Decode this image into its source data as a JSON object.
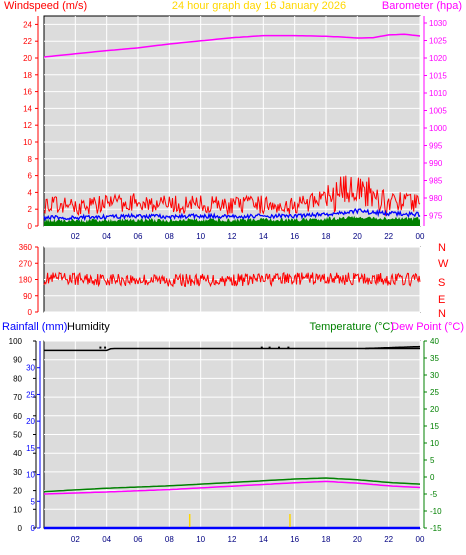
{
  "header": {
    "windspeed_label": "Windspeed (m/s)",
    "title": "24 hour graph day   16 January 2026",
    "barometer_label": "Barometer (hpa)"
  },
  "colors": {
    "wind_gust": "#ff0000",
    "wind_avg": "#0000ff",
    "wind_low": "#008000",
    "barometer": "#ff00ff",
    "title": "#ffd700",
    "temperature": "#008000",
    "dew_point": "#ff00ff",
    "humidity": "#000000",
    "rainfall": "#0000ff",
    "plot_bg": "#dcdcdc",
    "grid": "#ffffff"
  },
  "chart_data": [
    {
      "type": "line",
      "x_ticks": [
        "02",
        "04",
        "06",
        "08",
        "10",
        "12",
        "14",
        "16",
        "18",
        "20",
        "22",
        "00"
      ],
      "y_left": {
        "label": "Windspeed (m/s)",
        "range": [
          0,
          25
        ],
        "ticks": [
          "0",
          "2",
          "4",
          "6",
          "8",
          "10",
          "12",
          "14",
          "16",
          "18",
          "20",
          "22",
          "24"
        ]
      },
      "y_right": {
        "label": "Barometer (hpa)",
        "range": [
          972,
          1032
        ],
        "ticks": [
          "975",
          "980",
          "985",
          "990",
          "995",
          "1000",
          "1005",
          "1010",
          "1015",
          "1020",
          "1025",
          "1030"
        ]
      },
      "grid": true,
      "series": [
        {
          "key": "barometer",
          "axis": "right",
          "x": [
            0,
            2,
            4,
            6,
            8,
            10,
            12,
            14,
            16,
            18,
            19,
            20,
            21,
            22,
            23,
            24
          ],
          "values": [
            1020.3,
            1021.2,
            1022.1,
            1022.9,
            1024.0,
            1024.9,
            1025.8,
            1026.4,
            1026.4,
            1026.2,
            1026.0,
            1025.7,
            1025.8,
            1026.6,
            1026.8,
            1026.3
          ]
        },
        {
          "key": "gust",
          "axis": "left",
          "x": [
            0,
            2,
            4,
            6,
            8,
            10,
            12,
            14,
            16,
            18,
            19,
            20,
            21,
            22,
            23,
            24
          ],
          "values": [
            2.6,
            2.3,
            2.7,
            2.9,
            2.5,
            2.6,
            2.4,
            2.6,
            2.5,
            3.2,
            4.0,
            4.8,
            3.6,
            3.0,
            2.9,
            2.7
          ]
        },
        {
          "key": "average",
          "axis": "left",
          "x": [
            0,
            2,
            4,
            6,
            8,
            10,
            12,
            14,
            16,
            18,
            19,
            20,
            21,
            22,
            23,
            24
          ],
          "values": [
            1.0,
            1.0,
            1.1,
            1.2,
            1.1,
            1.2,
            1.1,
            1.2,
            1.2,
            1.4,
            1.6,
            1.8,
            1.6,
            1.5,
            1.4,
            1.4
          ]
        },
        {
          "key": "low",
          "axis": "left",
          "x": [
            0,
            2,
            4,
            6,
            8,
            10,
            12,
            14,
            16,
            18,
            19,
            20,
            21,
            22,
            23,
            24
          ],
          "values": [
            0.4,
            0.4,
            0.4,
            0.5,
            0.4,
            0.5,
            0.4,
            0.5,
            0.5,
            0.6,
            0.7,
            0.8,
            0.7,
            0.6,
            0.6,
            0.6
          ]
        }
      ]
    },
    {
      "type": "line",
      "x_ticks": [
        "02",
        "04",
        "06",
        "08",
        "10",
        "12",
        "14",
        "16",
        "18",
        "20",
        "22",
        "00"
      ],
      "y_left": {
        "range": [
          0,
          360
        ],
        "ticks": [
          "360",
          "270",
          "180",
          "90",
          "0"
        ]
      },
      "y_right": {
        "ticks": [
          "N",
          "W",
          "S",
          "E",
          "N"
        ]
      },
      "grid": true,
      "series": [
        {
          "key": "direction",
          "x": [
            0,
            3,
            6,
            9,
            12,
            15,
            18,
            21,
            24
          ],
          "values": [
            185,
            182,
            178,
            176,
            178,
            183,
            186,
            182,
            180
          ]
        }
      ]
    },
    {
      "type": "line",
      "x_ticks": [
        "02",
        "04",
        "06",
        "08",
        "10",
        "12",
        "14",
        "16",
        "18",
        "20",
        "22",
        "00"
      ],
      "y_left": {
        "label": "Rainfall (mm)",
        "range": [
          0,
          35
        ],
        "ticks": [
          "0",
          "5",
          "10",
          "15",
          "20",
          "25",
          "30"
        ]
      },
      "y_humidity": {
        "label": "Humidity",
        "range": [
          0,
          100
        ],
        "ticks": [
          "0",
          "10",
          "20",
          "30",
          "40",
          "50",
          "60",
          "70",
          "80",
          "90",
          "100"
        ]
      },
      "y_right": {
        "label": "Temperature (°C)",
        "label2": "Dew Point (°C)",
        "range": [
          -15,
          40
        ],
        "ticks": [
          "-15",
          "-10",
          "-5",
          "0",
          "5",
          "10",
          "15",
          "20",
          "25",
          "30",
          "35",
          "40"
        ]
      },
      "grid": true,
      "series": [
        {
          "key": "humidity",
          "axis": "humidity",
          "x": [
            0,
            4,
            4.3,
            24
          ],
          "values": [
            95,
            95,
            96,
            96
          ]
        },
        {
          "key": "humidity_late",
          "axis": "humidity",
          "x": [
            20.5,
            24
          ],
          "values": [
            96,
            97
          ]
        },
        {
          "key": "temperature",
          "axis": "right",
          "x": [
            0,
            4,
            8,
            12,
            16,
            18,
            20,
            22,
            24
          ],
          "values": [
            -4.3,
            -3.3,
            -2.6,
            -1.6,
            -0.6,
            -0.3,
            -0.8,
            -1.6,
            -2.1
          ]
        },
        {
          "key": "dew_point",
          "axis": "right",
          "x": [
            0,
            4,
            8,
            12,
            16,
            18,
            20,
            22,
            24
          ],
          "values": [
            -5.0,
            -4.4,
            -3.7,
            -2.7,
            -1.7,
            -1.3,
            -1.8,
            -2.6,
            -3.1
          ]
        },
        {
          "key": "rainfall",
          "axis": "left",
          "x": [
            0,
            24
          ],
          "values": [
            0,
            0
          ]
        }
      ]
    }
  ],
  "lower_header": {
    "rainfall_label": "Rainfall (mm)",
    "humidity_label": "Humidity",
    "temperature_label": "Temperature (°C)",
    "dew_point_label": "Dew Point (°C)"
  }
}
